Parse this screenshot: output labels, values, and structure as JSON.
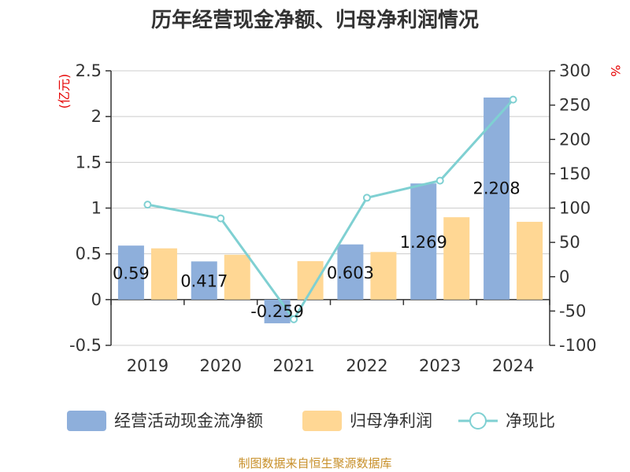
{
  "chart_data": {
    "type": "bar",
    "title": "历年经营现金净额、归母净利润情况",
    "categories": [
      "2019",
      "2020",
      "2021",
      "2022",
      "2023",
      "2024"
    ],
    "left_axis": {
      "unit": "(亿元)",
      "ylim": [
        -0.5,
        2.5
      ],
      "ticks": [
        "2.5",
        "2",
        "1.5",
        "1",
        "0.5",
        "0",
        "-0.5"
      ]
    },
    "right_axis": {
      "unit": "%",
      "ylim": [
        -100,
        300
      ],
      "ticks": [
        "300",
        "250",
        "200",
        "150",
        "100",
        "50",
        "0",
        "-50",
        "-100"
      ]
    },
    "series": [
      {
        "name": "经营活动现金流净额",
        "kind": "bar",
        "axis": "left",
        "color": "#8eafdb",
        "values": [
          0.59,
          0.417,
          -0.259,
          0.603,
          1.269,
          2.208
        ],
        "labels": [
          "0.59",
          "0.417",
          "-0.259",
          "0.603",
          "1.269",
          "2.208"
        ]
      },
      {
        "name": "归母净利润",
        "kind": "bar",
        "axis": "left",
        "color": "#ffd794",
        "values": [
          0.56,
          0.49,
          0.42,
          0.52,
          0.9,
          0.85
        ]
      },
      {
        "name": "净现比",
        "kind": "line",
        "axis": "right",
        "color": "#7fd0d2",
        "values": [
          105,
          85,
          -62,
          115,
          140,
          258
        ]
      }
    ],
    "grid": true,
    "legend_position": "bottom"
  },
  "source_text": "制图数据来自恒生聚源数据库"
}
